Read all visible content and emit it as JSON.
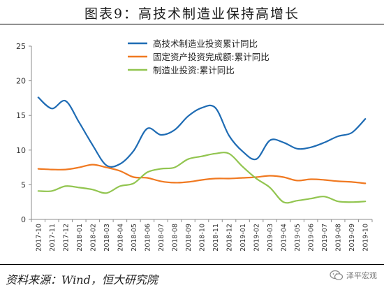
{
  "header": {
    "title": "图表9：高技术制造业保持高增长"
  },
  "source": {
    "text": "资料来源：Wind，恒大研究院"
  },
  "watermark": {
    "text": "泽平宏观",
    "icon": "wechat-icon"
  },
  "chart_data": {
    "type": "line",
    "x": [
      "2017-10",
      "2017-11",
      "2017-12",
      "2018-01",
      "2018-02",
      "2018-03",
      "2018-04",
      "2018-05",
      "2018-06",
      "2018-07",
      "2018-08",
      "2018-09",
      "2018-10",
      "2018-11",
      "2018-12",
      "2019-01",
      "2019-02",
      "2019-03",
      "2019-04",
      "2019-05",
      "2019-06",
      "2019-07",
      "2019-08",
      "2019-09",
      "2019-10"
    ],
    "ylim": [
      0,
      25
    ],
    "yticks": [
      0,
      5,
      10,
      15,
      20,
      25
    ],
    "grid": false,
    "legend_position": "top-right",
    "series": [
      {
        "name": "高技术制造业投资累计同比",
        "color": "#1f6cb4",
        "values": [
          17.6,
          16.0,
          17.1,
          14.0,
          10.7,
          7.8,
          8.0,
          9.9,
          13.1,
          12.2,
          12.9,
          14.9,
          16.1,
          16.1,
          12.1,
          9.8,
          8.7,
          11.4,
          11.1,
          10.2,
          10.4,
          11.1,
          12.0,
          12.5,
          14.5
        ]
      },
      {
        "name": "固定资产投资完成额:累计同比",
        "color": "#f07921",
        "values": [
          7.3,
          7.2,
          7.2,
          7.5,
          7.9,
          7.5,
          7.0,
          6.1,
          6.0,
          5.5,
          5.3,
          5.4,
          5.7,
          5.9,
          5.9,
          6.0,
          6.1,
          6.3,
          6.1,
          5.6,
          5.8,
          5.7,
          5.5,
          5.4,
          5.2
        ]
      },
      {
        "name": "制造业投资:累计同比",
        "color": "#92c550",
        "values": [
          4.1,
          4.1,
          4.8,
          4.6,
          4.3,
          3.8,
          4.8,
          5.2,
          6.8,
          7.3,
          7.5,
          8.7,
          9.1,
          9.5,
          9.5,
          7.6,
          5.9,
          4.6,
          2.5,
          2.7,
          3.0,
          3.3,
          2.6,
          2.5,
          2.6
        ]
      }
    ]
  }
}
